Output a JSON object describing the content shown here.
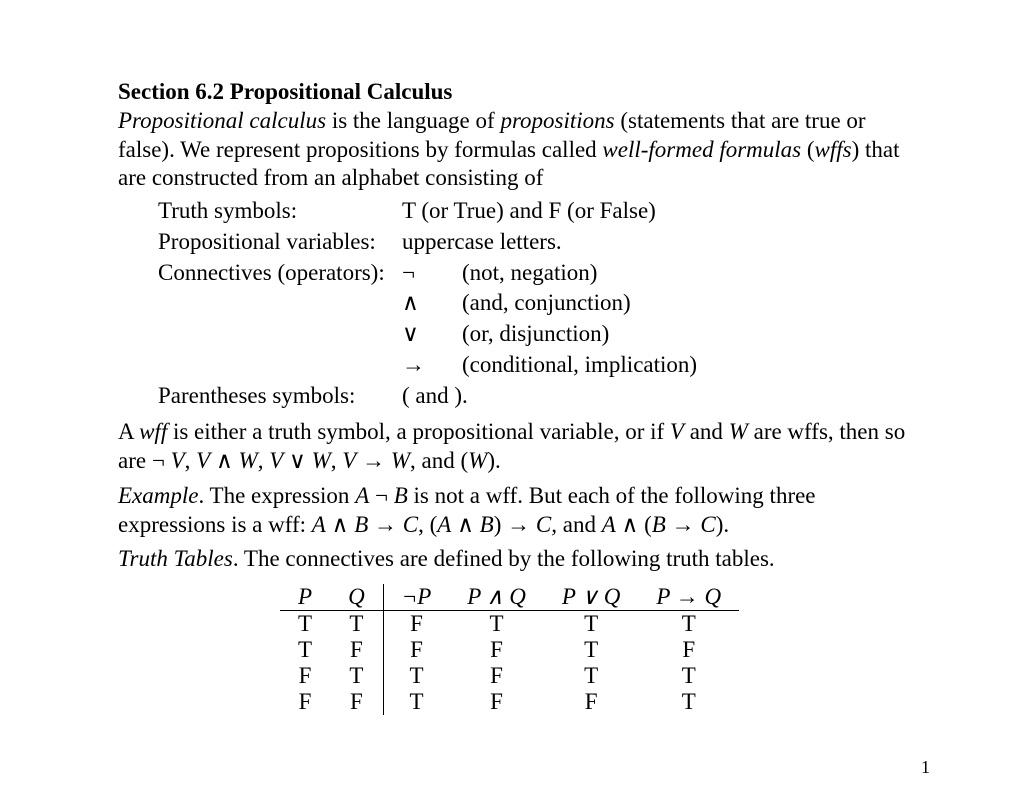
{
  "title": "Section 6.2 Propositional Calculus",
  "intro": {
    "t1": "Propositional calculus",
    "t2": " is the language of ",
    "t3": "propositions",
    "t4": " (statements that are true or false). We represent propositions by formulas called ",
    "t5": "well-formed formulas",
    "t6": " (",
    "t7": "wffs",
    "t8": ") that are constructed from an alphabet consisting of"
  },
  "defs": {
    "truth_label": "Truth symbols:",
    "truth_val": "T (or True) and F (or False)",
    "propvar_label": "Propositional variables:",
    "propvar_val": "uppercase letters.",
    "conn_label": "Connectives (operators):",
    "conn": [
      {
        "sym": "¬",
        "desc": "(not, negation)"
      },
      {
        "sym": "∧",
        "desc": "(and, conjunction)"
      },
      {
        "sym": "∨",
        "desc": "(or, disjunction)"
      },
      {
        "sym": "→",
        "desc": "(conditional, implication)"
      }
    ],
    "paren_label": "Parentheses symbols:",
    "paren_val": "(  and   )."
  },
  "wff": {
    "t1": "A ",
    "t2": "wff",
    "t3": " is either a truth symbol, a propositional variable, or if ",
    "t4": "V",
    "t5": " and ",
    "t6": "W",
    "t7": " are wffs, then so are ¬ ",
    "t8": "V",
    "t9": ", ",
    "t10": "V",
    "t11": " ∧ ",
    "t12": "W",
    "t13": ", ",
    "t14": "V",
    "t15": " ∨ ",
    "t16": "W",
    "t17": ", ",
    "t18": "V",
    "t19": " → ",
    "t20": "W",
    "t21": ", and (",
    "t22": "W",
    "t23": ")."
  },
  "example": {
    "t1": "Example",
    "t2": ". The expression ",
    "t3": "A",
    "t4": " ¬ ",
    "t5": "B",
    "t6": " is not a wff.  But each of the following three expressions is a wff: ",
    "t7": "A",
    "t8": " ∧ ",
    "t9": "B",
    "t10": " → ",
    "t11": "C",
    "t12": ", (",
    "t13": "A",
    "t14": " ∧ ",
    "t15": "B",
    "t16": ") → ",
    "t17": "C,",
    "t18": " and ",
    "t19": "A",
    "t20": " ∧ (",
    "t21": "B",
    "t22": " → ",
    "t23": "C",
    "t24": ")."
  },
  "tt_intro": {
    "t1": "Truth Tables",
    "t2": ". The connectives are defined by the following truth tables."
  },
  "truth_table": {
    "headers": [
      "P",
      "Q",
      "¬P",
      "P ∧ Q",
      "P ∨ Q",
      "P → Q"
    ],
    "rows": [
      [
        "T",
        "T",
        "F",
        "T",
        "T",
        "T"
      ],
      [
        "T",
        "F",
        "F",
        "F",
        "T",
        "F"
      ],
      [
        "F",
        "T",
        "T",
        "F",
        "T",
        "T"
      ],
      [
        "F",
        "F",
        "T",
        "F",
        "F",
        "T"
      ]
    ]
  },
  "pagenum": "1",
  "style": {
    "text_color": "#000000",
    "background_color": "#ffffff",
    "base_fontsize": 23,
    "small_fontsize": 18,
    "font_family": "Times New Roman",
    "rule_color": "#000000",
    "rule_width": 1.5,
    "table_cell_hpadding": 18,
    "defs_indent": 38,
    "truth_table_left_margin": 162
  }
}
